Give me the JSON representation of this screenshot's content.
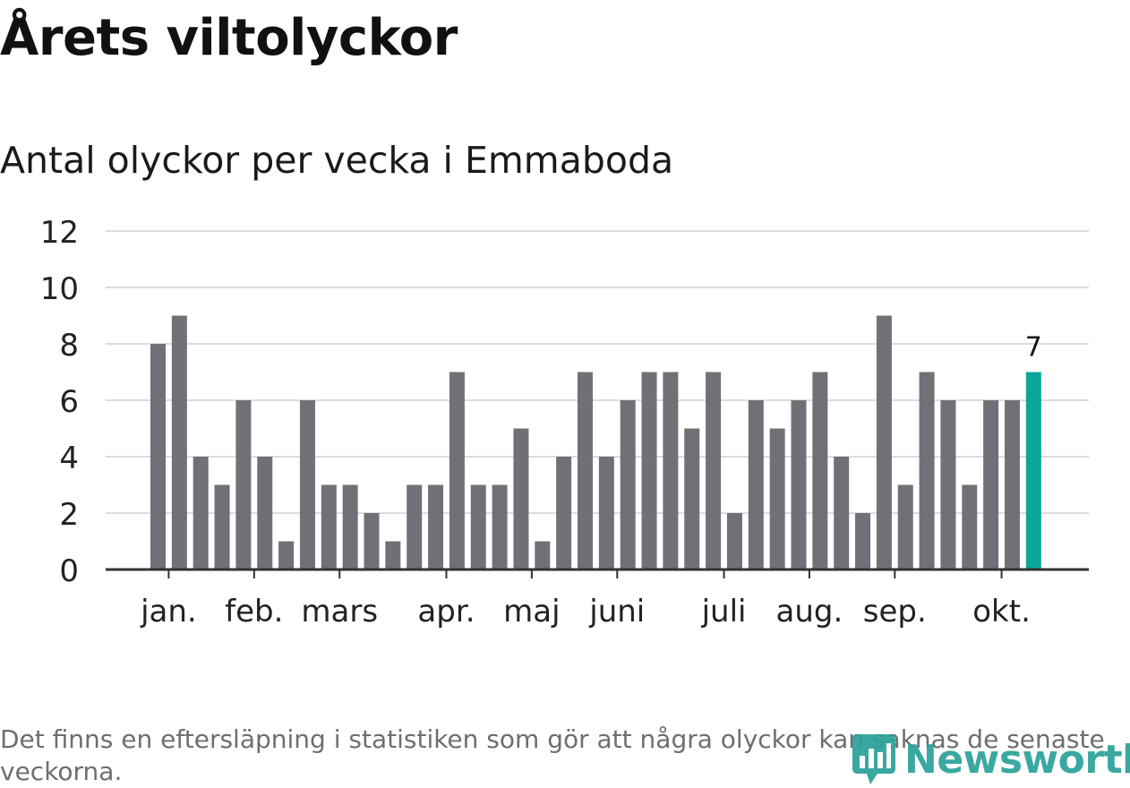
{
  "header": {
    "title": "Årets viltolyckor",
    "subtitle": "Antal olyckor per vecka i Emmaboda"
  },
  "footer": {
    "note": "Det finns en eftersläpning i statistiken som gör att några olyckor kan saknas de senaste veckorna.",
    "logo_text": "Newsworthy"
  },
  "colors": {
    "bar": "#717076",
    "highlight": "#0ca59a",
    "grid": "#dcdcdc",
    "axis": "#333333"
  },
  "chart_data": {
    "type": "bar",
    "title": "Årets viltolyckor",
    "subtitle": "Antal olyckor per vecka i Emmaboda",
    "xlabel": "",
    "ylabel": "",
    "ylim": [
      0,
      12
    ],
    "yticks": [
      0,
      2,
      4,
      6,
      8,
      10,
      12
    ],
    "grid": true,
    "values": [
      8,
      9,
      4,
      3,
      6,
      4,
      1,
      6,
      3,
      3,
      2,
      1,
      3,
      3,
      7,
      3,
      3,
      5,
      1,
      4,
      7,
      4,
      6,
      7,
      7,
      5,
      7,
      2,
      6,
      5,
      6,
      7,
      4,
      2,
      9,
      3,
      7,
      6,
      3,
      6,
      6,
      7
    ],
    "highlight_index": 41,
    "highlight_label": "7",
    "month_labels": [
      {
        "label": "jan.",
        "bar_index": 0.5
      },
      {
        "label": "feb.",
        "bar_index": 4.5
      },
      {
        "label": "mars",
        "bar_index": 8.5
      },
      {
        "label": "apr.",
        "bar_index": 13.5
      },
      {
        "label": "maj",
        "bar_index": 17.5
      },
      {
        "label": "juni",
        "bar_index": 21.5
      },
      {
        "label": "juli",
        "bar_index": 26.5
      },
      {
        "label": "aug.",
        "bar_index": 30.5
      },
      {
        "label": "sep.",
        "bar_index": 34.5
      },
      {
        "label": "okt.",
        "bar_index": 39.5
      }
    ]
  }
}
